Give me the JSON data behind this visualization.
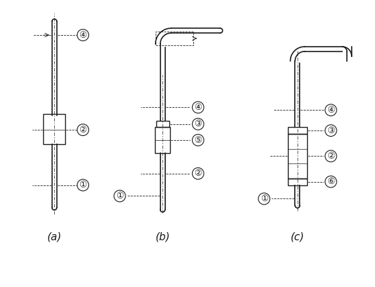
{
  "fig_width": 5.47,
  "fig_height": 4.18,
  "dpi": 100,
  "bg_color": "#ffffff",
  "line_color": "#1a1a1a",
  "labels": {
    "a": "(a)",
    "b": "(b)",
    "c": "(c)"
  },
  "font_size_label": 11,
  "font_size_circle": 9
}
